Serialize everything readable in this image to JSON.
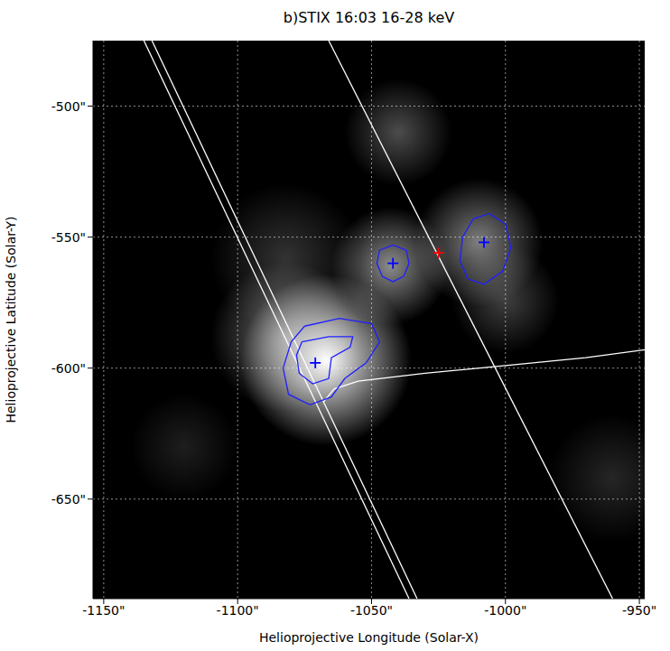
{
  "chart_data": {
    "type": "image_map",
    "title": "b)STIX 16:03 16-28 keV",
    "x_label": "Helioprojective Longitude (Solar-X)",
    "y_label": "Helioprojective Latitude (Solar-Y)",
    "xlim": [
      -1154,
      -948
    ],
    "ylim": [
      -688,
      -475
    ],
    "xticks": [
      {
        "value": -1150,
        "label": "-1150\""
      },
      {
        "value": -1100,
        "label": "-1100\""
      },
      {
        "value": -1050,
        "label": "-1050\""
      },
      {
        "value": -1000,
        "label": "-1000\""
      },
      {
        "value": -950,
        "label": "-950\""
      }
    ],
    "yticks": [
      {
        "value": -500,
        "label": "-500\""
      },
      {
        "value": -550,
        "label": "-550\""
      },
      {
        "value": -600,
        "label": "-600\""
      },
      {
        "value": -650,
        "label": "-650\""
      }
    ],
    "grid": true,
    "sources": [
      {
        "x": -1067,
        "y": -597,
        "size": 16,
        "intensity": 1.0
      },
      {
        "x": -1082,
        "y": -588,
        "size": 14,
        "intensity": 0.45
      },
      {
        "x": -1043,
        "y": -561,
        "size": 11,
        "intensity": 0.55
      },
      {
        "x": -1010,
        "y": -552,
        "size": 12,
        "intensity": 0.5
      },
      {
        "x": -1040,
        "y": -510,
        "size": 10,
        "intensity": 0.3
      },
      {
        "x": -1000,
        "y": -574,
        "size": 10,
        "intensity": 0.25
      },
      {
        "x": -1082,
        "y": -558,
        "size": 14,
        "intensity": 0.2
      },
      {
        "x": -1120,
        "y": -630,
        "size": 10,
        "intensity": 0.12
      },
      {
        "x": -960,
        "y": -642,
        "size": 12,
        "intensity": 0.15
      }
    ],
    "contours": [
      {
        "color": "#1f1fff",
        "x": [
          -1075,
          -1062,
          -1050,
          -1047,
          -1052,
          -1060,
          -1065,
          -1073,
          -1081,
          -1083,
          -1080,
          -1075
        ],
        "y": [
          -584,
          -581,
          -583,
          -590,
          -598,
          -604,
          -611,
          -614,
          -610,
          -600,
          -590,
          -584
        ]
      },
      {
        "color": "#1f1fff",
        "x": [
          -1076,
          -1066,
          -1057,
          -1058,
          -1065,
          -1066,
          -1072,
          -1077,
          -1078,
          -1076
        ],
        "y": [
          -590,
          -588,
          -588,
          -592,
          -596,
          -604,
          -606,
          -602,
          -595,
          -590
        ]
      },
      {
        "color": "#1f1fff",
        "x": [
          -1042,
          -1037,
          -1036,
          -1038,
          -1042,
          -1046,
          -1048,
          -1047,
          -1042
        ],
        "y": [
          -553,
          -555,
          -560,
          -565,
          -567,
          -565,
          -560,
          -555,
          -553
        ]
      },
      {
        "color": "#1f1fff",
        "x": [
          -1006,
          -1000,
          -998,
          -1001,
          -1008,
          -1014,
          -1017,
          -1016,
          -1012,
          -1006
        ],
        "y": [
          -541,
          -545,
          -554,
          -563,
          -568,
          -566,
          -559,
          -550,
          -543,
          -541
        ]
      }
    ],
    "lines": [
      {
        "color": "#ffffff",
        "x": [
          -1135,
          -1036
        ],
        "y": [
          -475,
          -688
        ]
      },
      {
        "color": "#ffffff",
        "x": [
          -1132,
          -1033
        ],
        "y": [
          -475,
          -688
        ]
      },
      {
        "color": "#ffffff",
        "x": [
          -1066,
          -960
        ],
        "y": [
          -475,
          -688
        ]
      },
      {
        "color": "#ffffff",
        "x": [
          -1068,
          -1064,
          -1055,
          -1030,
          -1000,
          -970,
          -948
        ],
        "y": [
          -613,
          -608,
          -605,
          -602,
          -599,
          -596,
          -593
        ]
      }
    ],
    "markers": [
      {
        "x": -1071,
        "y": -598,
        "color": "#0000ff",
        "marker": "cross"
      },
      {
        "x": -1042,
        "y": -560,
        "color": "#0000ff",
        "marker": "cross"
      },
      {
        "x": -1008,
        "y": -552,
        "color": "#0000ff",
        "marker": "cross"
      },
      {
        "x": -1025,
        "y": -556,
        "color": "#ff0000",
        "marker": "cross"
      }
    ]
  }
}
